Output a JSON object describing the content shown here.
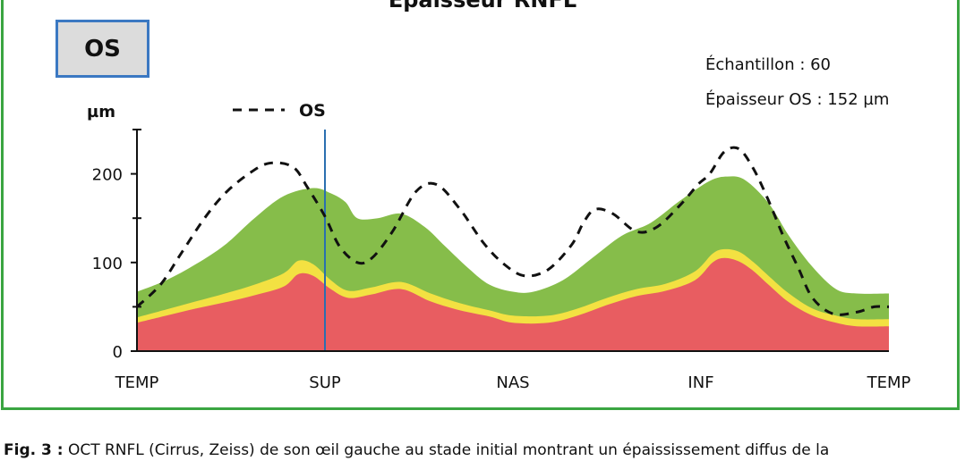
{
  "title": "Épaisseur RNFL",
  "eye_badge": "OS",
  "info": {
    "sample": "Échantillon : 60",
    "thickness": "Épaisseur OS : 152 µm"
  },
  "caption": {
    "lead": "Fig. 3 :",
    "text": "OCT RNFL (Cirrus, Zeiss) de son œil gauche au stade initial montrant un épaississement diffus de la"
  },
  "colors": {
    "frame": "#3aa541",
    "badge_border": "#3b78c2",
    "green_band": "#86bd4a",
    "yellow_band": "#f3e142",
    "red_band": "#e85d61",
    "marker_line": "#2a6fb0",
    "os_curve": "#111111"
  },
  "chart_data": {
    "type": "area",
    "ylabel": "µm",
    "ylim": [
      0,
      250
    ],
    "yticks": [
      0,
      100,
      200
    ],
    "xlim": [
      0,
      256
    ],
    "x_categories": [
      {
        "label": "TEMP",
        "x": 0
      },
      {
        "label": "SUP",
        "x": 64
      },
      {
        "label": "NAS",
        "x": 128
      },
      {
        "label": "INF",
        "x": 192
      },
      {
        "label": "TEMP",
        "x": 256
      }
    ],
    "marker_x": 64,
    "legend": [
      {
        "name": "OS",
        "style": "dashed",
        "position": "top-left"
      }
    ],
    "series": [
      {
        "name": "OS",
        "style": "dashed-line",
        "x": [
          0,
          8,
          15,
          23,
          30,
          38,
          45,
          53,
          58,
          64,
          69,
          75,
          80,
          87,
          95,
          102,
          110,
          118,
          125,
          132,
          140,
          148,
          152,
          156,
          162,
          170,
          177,
          185,
          191,
          195,
          200,
          205,
          210,
          215,
          220,
          225,
          230,
          237,
          245,
          251,
          256
        ],
        "values": [
          50,
          75,
          110,
          150,
          178,
          200,
          212,
          208,
          185,
          152,
          118,
          100,
          105,
          135,
          180,
          188,
          160,
          122,
          98,
          85,
          92,
          120,
          145,
          160,
          155,
          135,
          140,
          165,
          188,
          200,
          225,
          228,
          205,
          170,
          130,
          95,
          60,
          42,
          44,
          50,
          50
        ]
      },
      {
        "name": "upper-band",
        "x": [
          0,
          10,
          20,
          30,
          40,
          50,
          60,
          66,
          71,
          75,
          82,
          90,
          98,
          105,
          113,
          120,
          128,
          135,
          145,
          155,
          165,
          175,
          185,
          195,
          201,
          207,
          215,
          222,
          230,
          238,
          245,
          256
        ],
        "values": [
          67,
          80,
          98,
          120,
          150,
          175,
          184,
          178,
          168,
          150,
          150,
          155,
          140,
          118,
          93,
          75,
          67,
          67,
          80,
          105,
          130,
          145,
          170,
          192,
          197,
          193,
          167,
          130,
          95,
          70,
          65,
          65
        ]
      },
      {
        "name": "middle-band",
        "x": [
          0,
          10,
          20,
          30,
          40,
          50,
          55,
          60,
          66,
          72,
          80,
          90,
          100,
          110,
          120,
          128,
          140,
          150,
          160,
          170,
          180,
          190,
          196,
          200,
          205,
          210,
          215,
          222,
          230,
          238,
          245,
          256
        ],
        "values": [
          38,
          47,
          56,
          65,
          75,
          88,
          102,
          98,
          80,
          68,
          72,
          78,
          65,
          54,
          46,
          40,
          40,
          48,
          60,
          70,
          76,
          90,
          110,
          115,
          112,
          100,
          85,
          65,
          48,
          40,
          36,
          36
        ]
      },
      {
        "name": "lower-band",
        "x": [
          0,
          10,
          20,
          30,
          40,
          50,
          55,
          60,
          66,
          72,
          80,
          90,
          100,
          110,
          120,
          128,
          140,
          150,
          160,
          170,
          180,
          190,
          196,
          200,
          205,
          210,
          215,
          222,
          230,
          238,
          245,
          256
        ],
        "values": [
          32,
          40,
          48,
          55,
          63,
          73,
          87,
          85,
          70,
          60,
          64,
          70,
          56,
          46,
          39,
          32,
          32,
          40,
          52,
          62,
          68,
          80,
          100,
          105,
          101,
          90,
          75,
          55,
          40,
          32,
          28,
          28
        ]
      }
    ]
  }
}
